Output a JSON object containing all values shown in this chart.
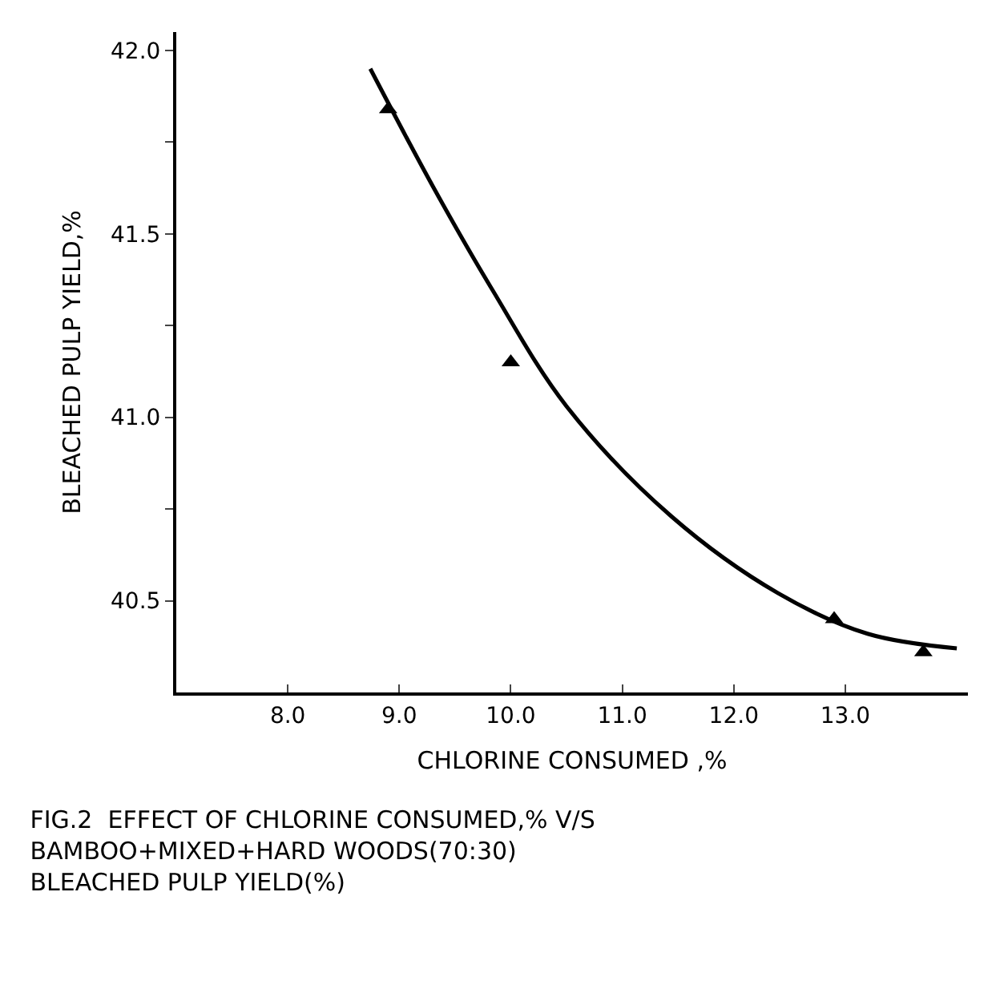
{
  "chart_data": {
    "type": "scatter",
    "title": "FIG.2  EFFECT OF CHLORINE CONSUMED,% V/S\nBAMBOO+MIXED+HARD WOODS(70:30)\nBLEACHED PULP YIELD(%)",
    "xlabel": "CHLORINE CONSUMED ,%",
    "ylabel": "BLEACHED PULP YIELD,%",
    "series": [
      {
        "color": "#000000",
        "marker": "triangle",
        "x": [
          8.9,
          10.0,
          12.9,
          13.7
        ],
        "values": [
          41.84,
          41.15,
          40.45,
          40.36
        ]
      },
      {
        "type": "line",
        "color": "#000000",
        "marker": "none",
        "x": [
          8.74,
          9.3,
          9.83,
          10.5,
          11.44,
          12.4,
          13.2,
          14.0
        ],
        "values": [
          41.95,
          41.63,
          41.35,
          41.03,
          40.73,
          40.52,
          40.41,
          40.37
        ]
      }
    ],
    "xlim": [
      7.0,
      14.1
    ],
    "xticks": [
      {
        "value": 8,
        "label": "8.0"
      },
      {
        "value": 9,
        "label": "9.0"
      },
      {
        "value": 10,
        "label": "10.0"
      },
      {
        "value": 11,
        "label": "11.0"
      },
      {
        "value": 12,
        "label": "12.0"
      },
      {
        "value": 13,
        "label": "13.0"
      }
    ],
    "ylim": [
      40.25,
      42.05
    ],
    "yticks": [
      {
        "value": 40.5,
        "label": "40.5"
      },
      {
        "value": 40.75,
        "label": null
      },
      {
        "value": 41,
        "label": "41.0"
      },
      {
        "value": 41.25,
        "label": null
      },
      {
        "value": 41.5,
        "label": "41.5"
      },
      {
        "value": 41.75,
        "label": null
      },
      {
        "value": 42,
        "label": "42.0"
      }
    ],
    "line_style": "solid"
  }
}
